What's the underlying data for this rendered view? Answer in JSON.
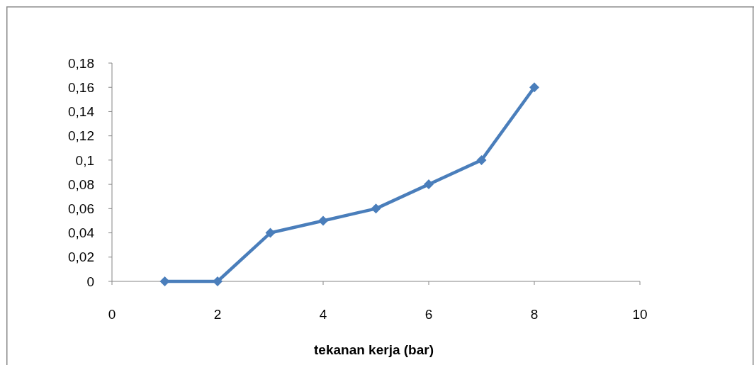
{
  "chart_data": {
    "type": "line",
    "xlabel": "tekanan kerja (bar)",
    "x": [
      1,
      2,
      3,
      4,
      5,
      6,
      7,
      8
    ],
    "series": [
      {
        "color": "#4a7ebb",
        "values": [
          0,
          0,
          0.04,
          0.05,
          0.06,
          0.08,
          0.1,
          0.16
        ]
      }
    ],
    "xlim": [
      0,
      10
    ],
    "xticks": [
      0,
      2,
      4,
      6,
      8,
      10
    ],
    "ylim": [
      0,
      0.18
    ],
    "yticks": [
      0,
      {
        "value": 0.02,
        "label": "0,02"
      },
      {
        "value": 0.04,
        "label": "0,04"
      },
      {
        "value": 0.06,
        "label": "0,06"
      },
      {
        "value": 0.08,
        "label": "0,08"
      },
      {
        "value": 0.1,
        "label": "0,1"
      },
      {
        "value": 0.12,
        "label": "0,12"
      },
      {
        "value": 0.14,
        "label": "0,14"
      },
      {
        "value": 0.16,
        "label": "0,16"
      },
      {
        "value": 0.18,
        "label": "0,18"
      }
    ],
    "marker": "diamond",
    "line_style": "solid",
    "grid": false
  }
}
